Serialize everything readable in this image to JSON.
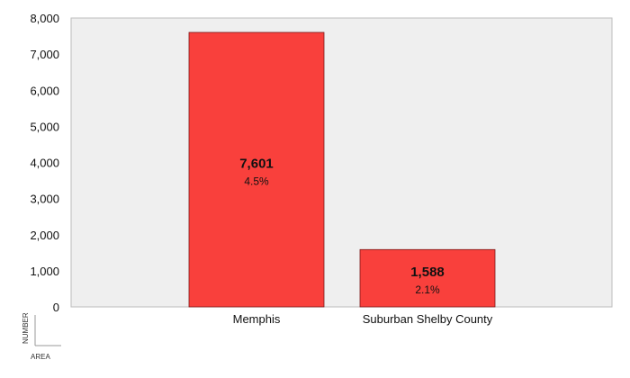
{
  "chart_data": {
    "type": "bar",
    "categories": [
      "Memphis",
      "Suburban Shelby County"
    ],
    "values": [
      7601,
      1588
    ],
    "value_labels": [
      "7,601",
      "1,588"
    ],
    "percent_labels": [
      "4.5%",
      "2.1%"
    ],
    "ylim": [
      0,
      8000
    ],
    "yticks": [
      0,
      1000,
      2000,
      3000,
      4000,
      5000,
      6000,
      7000,
      8000
    ],
    "ytick_labels": [
      "0",
      "1,000",
      "2,000",
      "3,000",
      "4,000",
      "5,000",
      "6,000",
      "7,000",
      "8,000"
    ],
    "ylabel": "NUMBER",
    "xlabel": "AREA",
    "grid": false,
    "colors": {
      "bar_fill": "#f9403c",
      "bar_stroke": "#7a1a1a",
      "plot_bg": "#efefef",
      "plot_border": "#bdbdbd",
      "text": "#111111"
    }
  }
}
